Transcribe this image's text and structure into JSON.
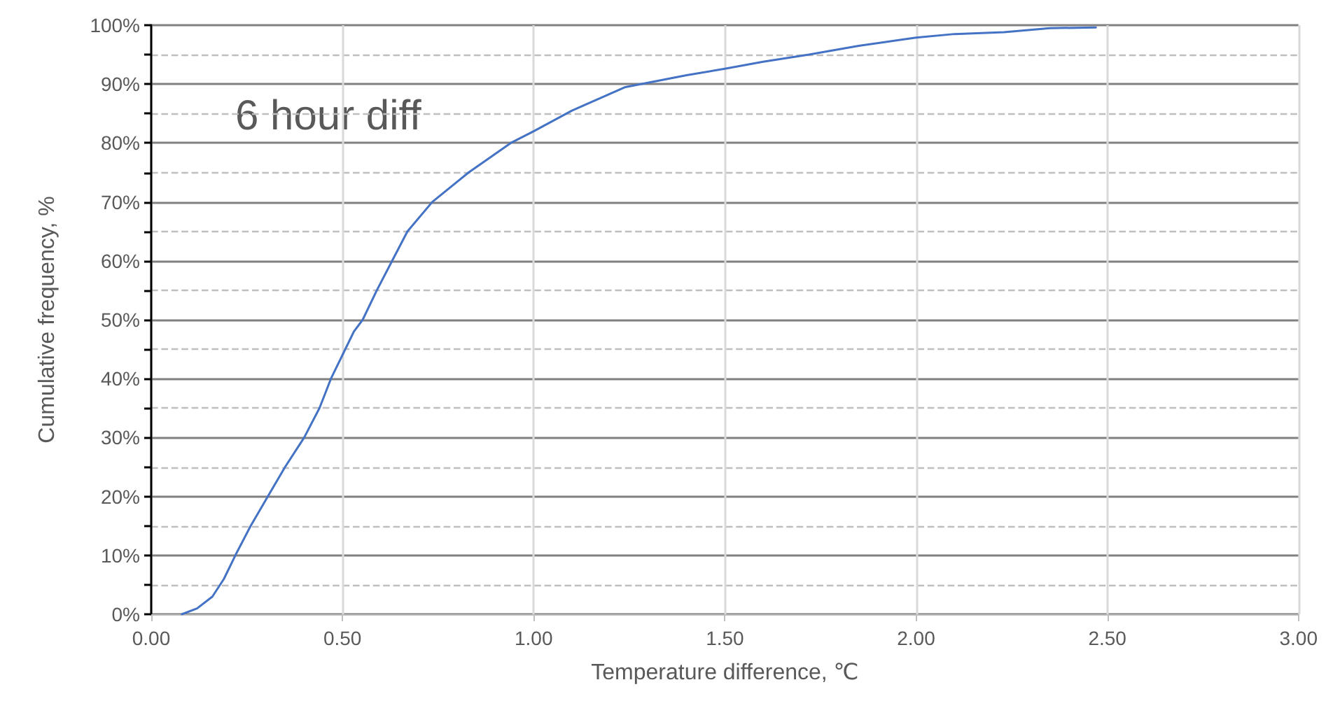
{
  "chart_data": {
    "type": "line",
    "xlabel": "Temperature difference, ℃",
    "ylabel": "Cumulative frequency, %",
    "annotations": [
      "6 hour diff"
    ],
    "x": [
      0.08,
      0.12,
      0.16,
      0.19,
      0.22,
      0.26,
      0.305,
      0.35,
      0.4,
      0.44,
      0.47,
      0.5,
      0.53,
      0.553,
      0.59,
      0.63,
      0.67,
      0.735,
      0.83,
      0.94,
      1.0,
      1.1,
      1.24,
      1.4,
      1.5,
      1.6,
      1.72,
      1.85,
      2.0,
      2.1,
      2.23,
      2.35,
      2.47
    ],
    "series": [
      {
        "color": "#4472c4",
        "values": [
          0,
          1,
          3,
          6,
          10,
          15,
          20,
          25,
          30,
          35,
          40,
          44,
          48,
          50,
          55,
          60,
          65,
          70,
          75,
          80,
          82,
          85.5,
          89.5,
          91.5,
          92.6,
          93.8,
          95,
          96.5,
          97.9,
          98.5,
          98.8,
          99.5,
          99.6
        ]
      }
    ],
    "xlim": [
      0,
      3
    ],
    "xticks": [
      {
        "value": 0,
        "label": "0.00"
      },
      {
        "value": 0.5,
        "label": "0.50"
      },
      {
        "value": 1,
        "label": "1.00"
      },
      {
        "value": 1.5,
        "label": "1.50"
      },
      {
        "value": 2,
        "label": "2.00"
      },
      {
        "value": 2.5,
        "label": "2.50"
      },
      {
        "value": 3,
        "label": "3.00"
      }
    ],
    "ylim": [
      0,
      100
    ],
    "yticks": [
      {
        "value": 0,
        "label": "0%"
      },
      {
        "value": 5,
        "label": null
      },
      {
        "value": 10,
        "label": "10%"
      },
      {
        "value": 15,
        "label": null
      },
      {
        "value": 20,
        "label": "20%"
      },
      {
        "value": 25,
        "label": null
      },
      {
        "value": 30,
        "label": "30%"
      },
      {
        "value": 35,
        "label": null
      },
      {
        "value": 40,
        "label": "40%"
      },
      {
        "value": 45,
        "label": null
      },
      {
        "value": 50,
        "label": "50%"
      },
      {
        "value": 55,
        "label": null
      },
      {
        "value": 60,
        "label": "60%"
      },
      {
        "value": 65,
        "label": null
      },
      {
        "value": 70,
        "label": "70%"
      },
      {
        "value": 75,
        "label": null
      },
      {
        "value": 80,
        "label": "80%"
      },
      {
        "value": 85,
        "label": null
      },
      {
        "value": 90,
        "label": "90%"
      },
      {
        "value": 95,
        "label": null
      },
      {
        "value": 100,
        "label": "100%"
      }
    ],
    "grid": true,
    "marker": "none",
    "line_style": "solid"
  }
}
